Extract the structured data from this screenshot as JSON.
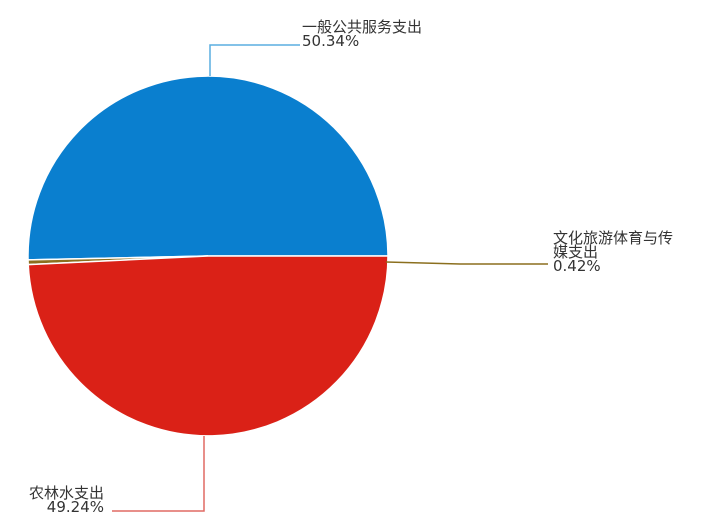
{
  "chart_data": {
    "type": "pie",
    "slices": [
      {
        "label": "一般公共服务支出",
        "label_lines": [
          "一般公共服务支出"
        ],
        "value": 50.34,
        "value_text": "50.34%",
        "color": "#0a7fcf",
        "leader_color": "#5aaee0"
      },
      {
        "label": "文化旅游体育与传媒支出",
        "label_lines": [
          "文化旅游体育与传",
          "媒支出"
        ],
        "value": 0.42,
        "value_text": "0.42%",
        "color": "#8b6f1e",
        "leader_color": "#8b6f1e"
      },
      {
        "label": "农林水支出",
        "label_lines": [
          "农林水支出"
        ],
        "value": 49.24,
        "value_text": "49.24%",
        "color": "#da2117",
        "leader_color": "#e06a64"
      }
    ]
  }
}
